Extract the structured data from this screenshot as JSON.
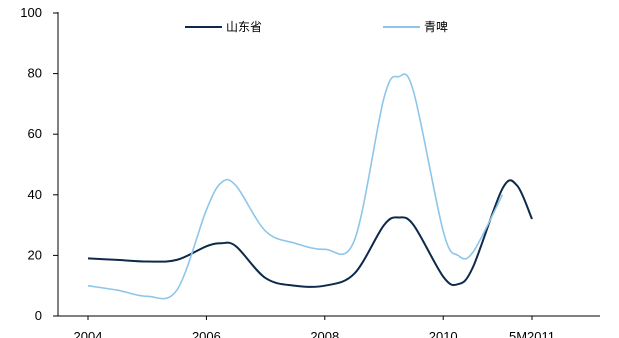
{
  "chart_data": {
    "type": "line",
    "title": "",
    "xlabel": "",
    "ylabel": "",
    "ylim": [
      0,
      100
    ],
    "y_ticks": [
      0,
      20,
      40,
      60,
      80,
      100
    ],
    "x_tick_labels": [
      "2004",
      "2006",
      "2008",
      "2010",
      "5M2011"
    ],
    "grid": false,
    "legend_position": "top",
    "x": [
      2004.0,
      2004.5,
      2005.0,
      2005.5,
      2006.0,
      2006.25,
      2006.5,
      2007.0,
      2007.5,
      2008.0,
      2008.5,
      2009.0,
      2009.25,
      2009.5,
      2010.0,
      2010.25,
      2010.5,
      2011.0,
      2011.25,
      2011.5
    ],
    "series": [
      {
        "name": "山东省",
        "color": "#0d2a4a",
        "values": [
          19,
          18.5,
          18,
          18.5,
          23,
          24,
          23,
          12.5,
          10,
          10,
          14,
          30,
          32.5,
          30,
          13,
          10.5,
          16,
          42,
          43,
          32
        ]
      },
      {
        "name": "青啤",
        "color": "#8ec6ea",
        "values": [
          10,
          8.5,
          6.5,
          8.5,
          35,
          44,
          43,
          28,
          24,
          22,
          25,
          72,
          79,
          74,
          28,
          20,
          21,
          40,
          null,
          null
        ]
      }
    ]
  }
}
